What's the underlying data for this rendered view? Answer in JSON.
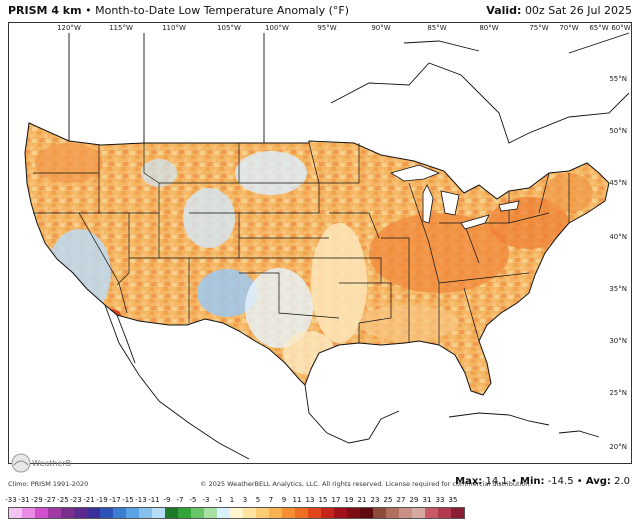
{
  "header": {
    "product": "PRISM 4 km",
    "separator": "•",
    "title": "Month-to-Date Low Temperature Anomaly (°F)",
    "valid_label": "Valid:",
    "valid_value": "00z Sat 26 Jul 2025"
  },
  "map": {
    "longitude_labels": [
      "120°W",
      "115°W",
      "110°W",
      "105°W",
      "100°W",
      "95°W",
      "90°W",
      "85°W",
      "80°W",
      "75°W",
      "70°W",
      "65°W",
      "60°W"
    ],
    "latitude_labels": [
      "55°N",
      "50°N",
      "45°N",
      "40°N",
      "35°N",
      "30°N",
      "25°N",
      "20°N"
    ],
    "dominant_colors": {
      "warm": "#f7b45a",
      "hot": "#f08a3c",
      "neutral": "#fde9c0",
      "cool": "#cfe6f7",
      "cold": "#7cb7e6",
      "water": "#ffffff",
      "border": "#111111"
    }
  },
  "footer": {
    "climo": "Climo: PRISM 1991-2020",
    "copyright": "© 2025 WeatherBELL Analytics, LLC. All rights reserved. License required for commercial distribution.",
    "max_label": "Max:",
    "max_value": "14.1",
    "min_label": "Min:",
    "min_value": "-14.5",
    "avg_label": "Avg:",
    "avg_value": "2.0",
    "logo_text": "WeatherBELL"
  },
  "color_scale": {
    "labels": [
      "-33",
      "-31",
      "-29",
      "-27",
      "-25",
      "-23",
      "-21",
      "-19",
      "-17",
      "-15",
      "-13",
      "-11",
      "-9",
      "-7",
      "-5",
      "-3",
      "-1",
      "1",
      "3",
      "5",
      "7",
      "9",
      "11",
      "13",
      "15",
      "17",
      "19",
      "21",
      "23",
      "25",
      "27",
      "29",
      "31",
      "33",
      "35"
    ],
    "colors": [
      "#f3c3f2",
      "#e98be6",
      "#d24fce",
      "#a13aa4",
      "#7a2e8c",
      "#5a2a8c",
      "#3b2f9c",
      "#2c52b8",
      "#3a7dd1",
      "#5aa2e3",
      "#86c1ee",
      "#b7dcf6",
      "#1e7a2a",
      "#33a33c",
      "#69c56a",
      "#a6e0a2",
      "#d8f2ff",
      "#fff6d0",
      "#ffe3a0",
      "#fdcd74",
      "#f9b152",
      "#f58f34",
      "#ef6c23",
      "#e0471a",
      "#c6261a",
      "#a3121a",
      "#7f0d14",
      "#5f0a0f",
      "#8e4a3a",
      "#b07060",
      "#c99086",
      "#d6aaa3",
      "#c85a68",
      "#b23a4e",
      "#8a1c34"
    ]
  }
}
